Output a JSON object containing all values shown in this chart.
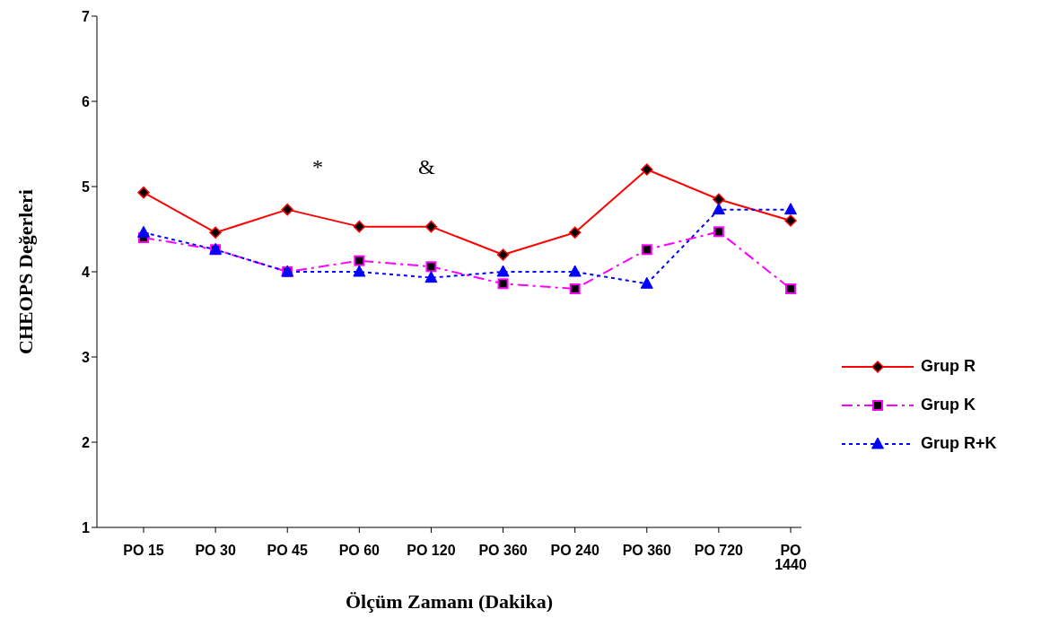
{
  "chart_data": {
    "type": "line",
    "xlabel": "Ölçüm Zamanı (Dakika)",
    "ylabel": "CHEOPS Değerleri",
    "categories": [
      "PO 15",
      "PO 30",
      "PO 45",
      "PO 60",
      "PO 120",
      "PO 360",
      "PO 240",
      "PO 360",
      "PO 720",
      "PO 1440"
    ],
    "series": [
      {
        "name": "Grup R",
        "color": "#ff0000",
        "marker": "diamond",
        "line_style": "solid",
        "values": [
          4.93,
          4.46,
          4.73,
          4.53,
          4.53,
          4.2,
          4.46,
          5.2,
          4.85,
          4.6
        ]
      },
      {
        "name": "Grup K",
        "color": "#ff00ff",
        "marker": "square",
        "line_style": "dashed",
        "values": [
          4.4,
          4.26,
          4.0,
          4.13,
          4.06,
          3.86,
          3.8,
          4.26,
          4.47,
          3.8
        ]
      },
      {
        "name": "Grup R+K",
        "color": "#0000ff",
        "marker": "triangle",
        "line_style": "dotted",
        "values": [
          4.46,
          4.26,
          4.0,
          4.0,
          3.93,
          4.0,
          4.0,
          3.86,
          4.73,
          4.73
        ]
      }
    ],
    "ylim": [
      1,
      7
    ],
    "yticks": [
      1,
      2,
      3,
      4,
      5,
      6,
      7
    ],
    "grid": false,
    "legend": "right",
    "annotations": [
      "*",
      "&"
    ]
  }
}
